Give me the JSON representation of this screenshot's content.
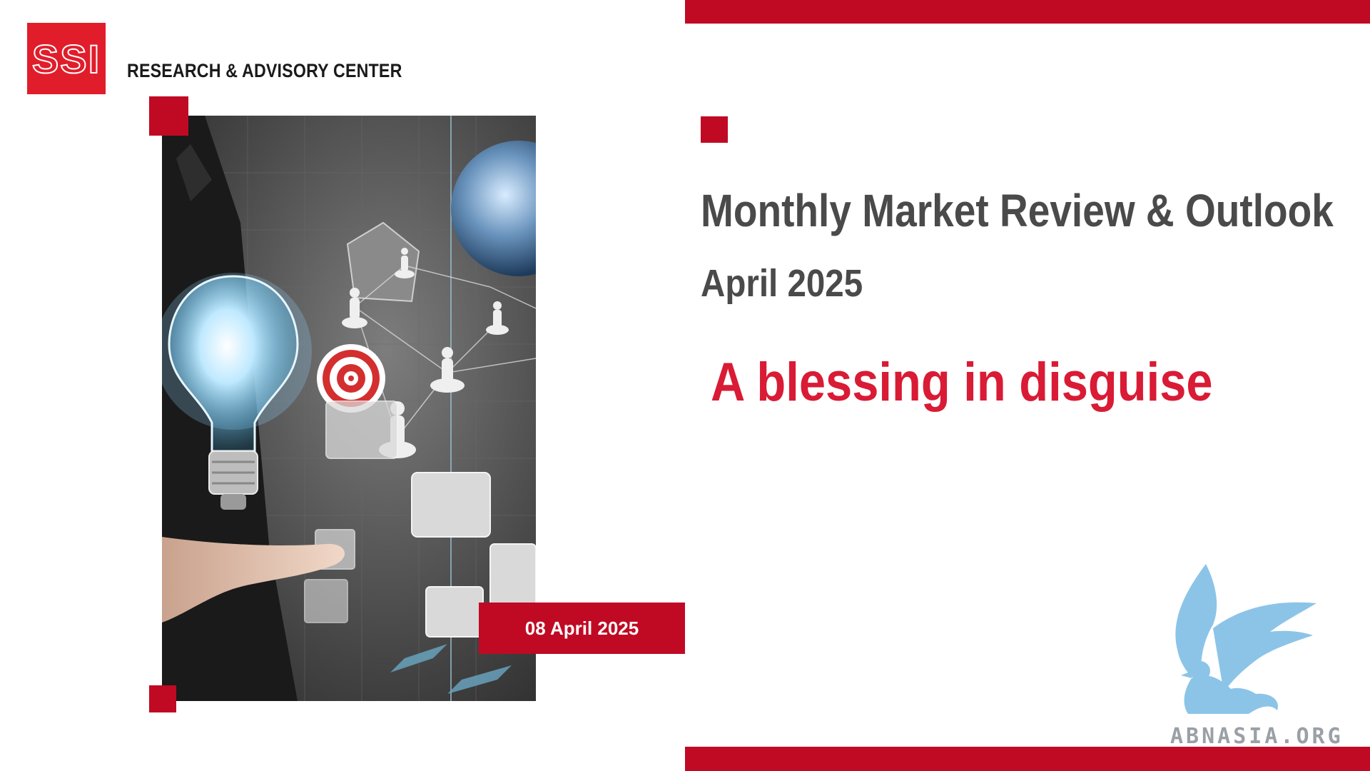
{
  "header": {
    "logo_text": "SSI",
    "center_name": "RESEARCH & ADVISORY CENTER"
  },
  "report": {
    "title": "Monthly Market Review & Outlook",
    "period": "April 2025",
    "tagline": "A blessing in disguise",
    "date": "08 April 2025"
  },
  "watermark": {
    "text": "ABNASIA.ORG",
    "icon": "griffin-icon"
  },
  "colors": {
    "brand_red": "#c00a24",
    "logo_red": "#e11d2b",
    "tagline_red": "#d91b35",
    "title_gray": "#4a4a4a",
    "watermark_blue": "#8cc4e8"
  }
}
